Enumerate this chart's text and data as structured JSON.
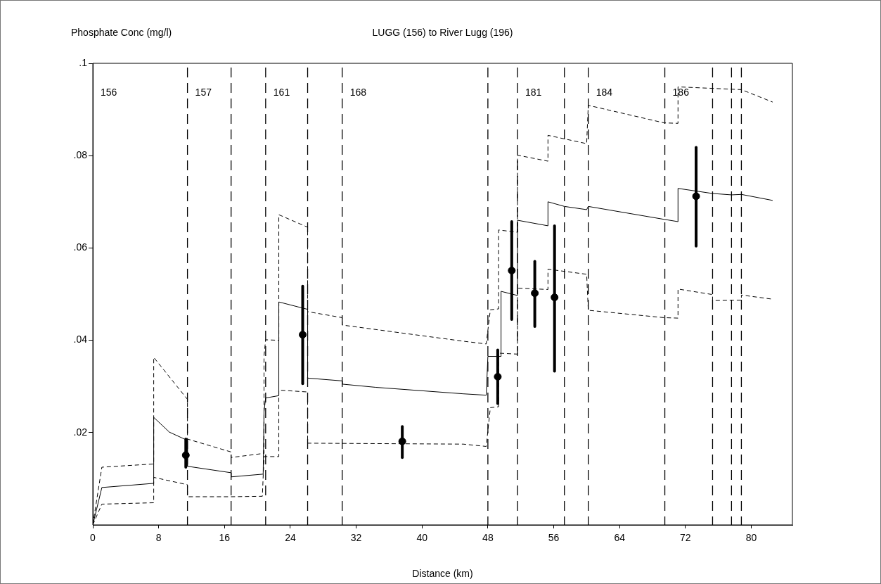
{
  "chart_data": {
    "type": "line",
    "title": "LUGG (156) to River Lugg (196)",
    "ylabel": "Phosphate Conc (mg/l)",
    "xlabel": "Distance (km)",
    "xlim": [
      0,
      85
    ],
    "xticks": [
      0,
      8,
      16,
      24,
      32,
      40,
      48,
      56,
      64,
      72,
      80
    ],
    "ylim": [
      0,
      0.1
    ],
    "yticks": [
      {
        "value": 0.02,
        "label": ".02"
      },
      {
        "value": 0.04,
        "label": ".04"
      },
      {
        "value": 0.06,
        "label": ".06"
      },
      {
        "value": 0.08,
        "label": ".08"
      },
      {
        "value": 0.1,
        "label": ".1"
      }
    ],
    "grid": false,
    "legend": false,
    "series": [
      {
        "type": "line",
        "color": "#000000",
        "line_style": "solid",
        "marker": "none",
        "x": [
          0,
          1.1,
          7.4,
          7.4,
          9.3,
          11.5,
          11.5,
          16.8,
          16.8,
          20.7,
          20.8,
          21.0,
          22.6,
          22.6,
          26.1,
          26.1,
          30.3,
          30.3,
          34.4,
          45,
          47.8,
          48.0,
          49.6,
          49.6,
          51.6,
          51.6,
          55.3,
          55.3,
          57.3,
          60.0,
          60.2,
          69.4,
          71.1,
          71.1,
          75.3,
          77.6,
          78.8,
          82.6
        ],
        "values": [
          0,
          0.0081,
          0.009,
          0.0233,
          0.0201,
          0.0183,
          0.0127,
          0.0113,
          0.0104,
          0.011,
          0.0245,
          0.0275,
          0.028,
          0.0483,
          0.0467,
          0.0318,
          0.0312,
          0.0305,
          0.0298,
          0.0284,
          0.0281,
          0.0365,
          0.0365,
          0.0506,
          0.0497,
          0.066,
          0.0648,
          0.07,
          0.069,
          0.0683,
          0.069,
          0.0662,
          0.0657,
          0.0729,
          0.0718,
          0.0715,
          0.0716,
          0.0703
        ]
      },
      {
        "type": "line",
        "color": "#000000",
        "line_style": "dashed",
        "marker": "none",
        "x": [
          0,
          1.1,
          7.4,
          7.4,
          11.5,
          11.5,
          16.8,
          16.8,
          20.8,
          20.8,
          21.0,
          22.6,
          22.6,
          26.1,
          26.1,
          30.3,
          30.3,
          45,
          47.8,
          48.3,
          49.3,
          49.3,
          51.6,
          51.6,
          55.3,
          55.3,
          60.0,
          60.2,
          69.4,
          71.1,
          71.1,
          78.8,
          82.6
        ],
        "values": [
          0,
          0.0125,
          0.0132,
          0.0363,
          0.0272,
          0.0186,
          0.0158,
          0.0146,
          0.0155,
          0.0366,
          0.0401,
          0.04,
          0.0672,
          0.0645,
          0.0462,
          0.0449,
          0.0433,
          0.0398,
          0.0392,
          0.0466,
          0.0468,
          0.0639,
          0.0634,
          0.0801,
          0.0788,
          0.0844,
          0.0826,
          0.0909,
          0.0871,
          0.087,
          0.0949,
          0.0943,
          0.0916
        ]
      },
      {
        "type": "line",
        "color": "#000000",
        "line_style": "dashed",
        "marker": "none",
        "x": [
          0,
          1.1,
          7.4,
          7.4,
          11.5,
          11.5,
          16.8,
          20.6,
          20.8,
          22.6,
          22.6,
          26.1,
          26.1,
          45,
          47.8,
          48.3,
          49.3,
          49.3,
          51.6,
          51.6,
          55.3,
          55.3,
          60.0,
          60.2,
          69.4,
          71.1,
          71.1,
          75.3,
          75.3,
          78.8,
          78.8,
          82.6
        ],
        "values": [
          0,
          0.0045,
          0.0048,
          0.0103,
          0.0087,
          0.0061,
          0.0061,
          0.0062,
          0.0148,
          0.0148,
          0.0292,
          0.0288,
          0.0177,
          0.0175,
          0.017,
          0.0254,
          0.0256,
          0.0372,
          0.037,
          0.0513,
          0.051,
          0.0554,
          0.0543,
          0.0465,
          0.0449,
          0.0448,
          0.0511,
          0.0499,
          0.0486,
          0.0487,
          0.0498,
          0.0489
        ]
      },
      {
        "type": "scatter",
        "color": "#000000",
        "marker": "circle",
        "x": [
          11.3,
          25.5,
          37.6,
          49.2,
          50.9,
          53.7,
          56.1,
          73.3
        ],
        "values": [
          0.0151,
          0.0412,
          0.0181,
          0.0321,
          0.0551,
          0.0502,
          0.0493,
          0.0712
        ],
        "errors": [
          [
            0.0125,
            0.0186
          ],
          [
            0.0306,
            0.0517
          ],
          [
            0.0146,
            0.0213
          ],
          [
            0.0263,
            0.0379
          ],
          [
            0.0445,
            0.0657
          ],
          [
            0.043,
            0.0571
          ],
          [
            0.0333,
            0.0648
          ],
          [
            0.0604,
            0.0818
          ]
        ]
      }
    ],
    "ref_lines": [
      {
        "axis": "x",
        "value": 11.5,
        "line_style": "dashed"
      },
      {
        "axis": "x",
        "value": 16.8,
        "line_style": "dashed"
      },
      {
        "axis": "x",
        "value": 21.0,
        "line_style": "dashed"
      },
      {
        "axis": "x",
        "value": 26.1,
        "line_style": "dashed"
      },
      {
        "axis": "x",
        "value": 30.3,
        "line_style": "dashed"
      },
      {
        "axis": "x",
        "value": 48.0,
        "line_style": "dashed"
      },
      {
        "axis": "x",
        "value": 51.6,
        "line_style": "dashed"
      },
      {
        "axis": "x",
        "value": 57.3,
        "line_style": "dashed"
      },
      {
        "axis": "x",
        "value": 60.2,
        "line_style": "dashed"
      },
      {
        "axis": "x",
        "value": 69.5,
        "line_style": "dashed"
      },
      {
        "axis": "x",
        "value": 75.3,
        "line_style": "dashed"
      },
      {
        "axis": "x",
        "value": 77.6,
        "line_style": "dashed"
      },
      {
        "axis": "x",
        "value": 78.8,
        "line_style": "dashed"
      }
    ],
    "annotations": [
      "156",
      "157",
      "161",
      "168",
      "181",
      "184",
      "186"
    ]
  }
}
